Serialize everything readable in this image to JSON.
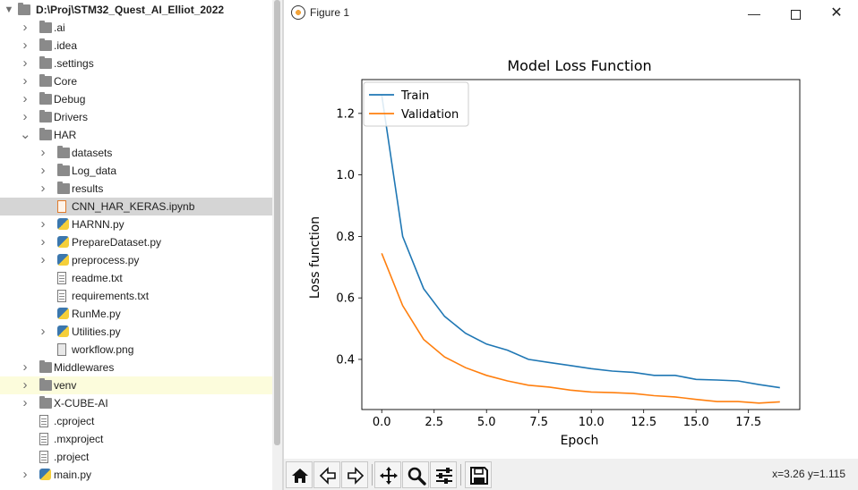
{
  "project_tree": {
    "root_path": "D:\\Proj\\STM32_Quest_AI_Elliot_2022",
    "items": [
      {
        "label": ".ai",
        "kind": "folder",
        "depth": 1,
        "state": "collapsed"
      },
      {
        "label": ".idea",
        "kind": "folder",
        "depth": 1,
        "state": "collapsed"
      },
      {
        "label": ".settings",
        "kind": "folder",
        "depth": 1,
        "state": "collapsed"
      },
      {
        "label": "Core",
        "kind": "folder",
        "depth": 1,
        "state": "collapsed"
      },
      {
        "label": "Debug",
        "kind": "folder",
        "depth": 1,
        "state": "collapsed"
      },
      {
        "label": "Drivers",
        "kind": "folder",
        "depth": 1,
        "state": "collapsed"
      },
      {
        "label": "HAR",
        "kind": "folder",
        "depth": 1,
        "state": "expanded"
      },
      {
        "label": "datasets",
        "kind": "folder",
        "depth": 2,
        "state": "collapsed"
      },
      {
        "label": "Log_data",
        "kind": "folder",
        "depth": 2,
        "state": "collapsed"
      },
      {
        "label": "results",
        "kind": "folder",
        "depth": 2,
        "state": "collapsed"
      },
      {
        "label": "CNN_HAR_KERAS.ipynb",
        "kind": "notebook",
        "depth": 2,
        "state": "selected"
      },
      {
        "label": "HARNN.py",
        "kind": "python",
        "depth": 2,
        "state": "collapsed"
      },
      {
        "label": "PrepareDataset.py",
        "kind": "python",
        "depth": 2,
        "state": "collapsed"
      },
      {
        "label": "preprocess.py",
        "kind": "python",
        "depth": 2,
        "state": "collapsed"
      },
      {
        "label": "readme.txt",
        "kind": "text",
        "depth": 2,
        "state": "leaf"
      },
      {
        "label": "requirements.txt",
        "kind": "text",
        "depth": 2,
        "state": "leaf"
      },
      {
        "label": "RunMe.py",
        "kind": "python",
        "depth": 2,
        "state": "leaf"
      },
      {
        "label": "Utilities.py",
        "kind": "python",
        "depth": 2,
        "state": "collapsed"
      },
      {
        "label": "workflow.png",
        "kind": "image",
        "depth": 2,
        "state": "leaf"
      },
      {
        "label": "Middlewares",
        "kind": "folder",
        "depth": 1,
        "state": "collapsed"
      },
      {
        "label": "venv",
        "kind": "folder",
        "depth": 1,
        "state": "collapsed-highlight"
      },
      {
        "label": "X-CUBE-AI",
        "kind": "folder",
        "depth": 1,
        "state": "collapsed"
      },
      {
        "label": ".cproject",
        "kind": "text",
        "depth": 1,
        "state": "leaf"
      },
      {
        "label": ".mxproject",
        "kind": "text",
        "depth": 1,
        "state": "leaf"
      },
      {
        "label": ".project",
        "kind": "text",
        "depth": 1,
        "state": "leaf"
      },
      {
        "label": "main.py",
        "kind": "python",
        "depth": 1,
        "state": "collapsed"
      }
    ]
  },
  "figure_window": {
    "title": "Figure 1",
    "min_glyph": "—",
    "close_glyph": "✕",
    "toolbar": {
      "buttons": [
        "home-icon",
        "back-icon",
        "forward-icon",
        "pan-icon",
        "zoom-icon",
        "configure-subplots-icon",
        "save-icon"
      ],
      "coordinates_text": "x=3.26 y=1.115"
    }
  },
  "chart_data": {
    "type": "line",
    "title": "Model Loss Function",
    "xlabel": "Epoch",
    "ylabel": "Loss function",
    "xlim": [
      -0.95,
      19.95
    ],
    "ylim": [
      0.237,
      1.31
    ],
    "xticks": [
      "0.0",
      "2.5",
      "5.0",
      "7.5",
      "10.0",
      "12.5",
      "15.0",
      "17.5"
    ],
    "xtick_values": [
      0,
      2.5,
      5,
      7.5,
      10,
      12.5,
      15,
      17.5
    ],
    "yticks": [
      "0.4",
      "0.6",
      "0.8",
      "1.0",
      "1.2"
    ],
    "ytick_values": [
      0.4,
      0.6,
      0.8,
      1.0,
      1.2
    ],
    "legend_position": "upper-left",
    "x": [
      0,
      1,
      2,
      3,
      4,
      5,
      6,
      7,
      8,
      9,
      10,
      11,
      12,
      13,
      14,
      15,
      16,
      17,
      18,
      19
    ],
    "series": [
      {
        "name": "Train",
        "color": "#1f77b4",
        "values": [
          1.26,
          0.8,
          0.63,
          0.54,
          0.485,
          0.45,
          0.43,
          0.4,
          0.39,
          0.38,
          0.37,
          0.362,
          0.358,
          0.348,
          0.348,
          0.335,
          0.333,
          0.33,
          0.318,
          0.308
        ]
      },
      {
        "name": "Validation",
        "color": "#ff7f0e",
        "values": [
          0.745,
          0.575,
          0.465,
          0.408,
          0.373,
          0.348,
          0.33,
          0.316,
          0.31,
          0.3,
          0.294,
          0.292,
          0.289,
          0.282,
          0.278,
          0.27,
          0.263,
          0.263,
          0.258,
          0.262
        ]
      }
    ]
  }
}
